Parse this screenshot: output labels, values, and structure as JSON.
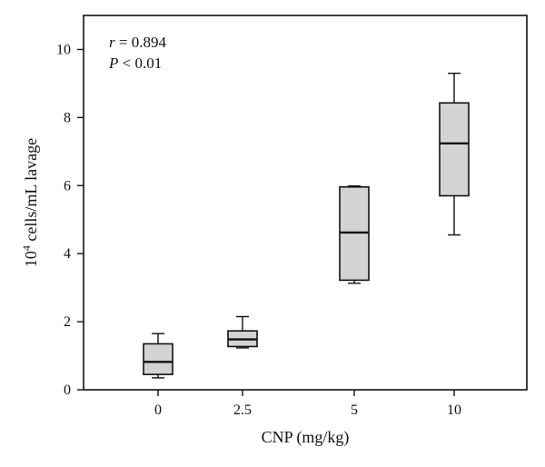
{
  "chart_data": {
    "type": "box",
    "xlabel": "CNP (mg/kg)",
    "ylabel_prefix": "10",
    "ylabel_exponent": "4",
    "ylabel_suffix": " cells/mL lavage",
    "ylim": [
      0,
      11
    ],
    "yticks": [
      0,
      2,
      4,
      6,
      8,
      10
    ],
    "categories": [
      "0",
      "2.5",
      "5",
      "10"
    ],
    "boxes": [
      {
        "category": "0",
        "min": 0.35,
        "q1": 0.45,
        "median": 0.82,
        "q3": 1.35,
        "max": 1.65
      },
      {
        "category": "2.5",
        "min": 1.23,
        "q1": 1.27,
        "median": 1.48,
        "q3": 1.73,
        "max": 2.15
      },
      {
        "category": "5",
        "min": 3.13,
        "q1": 3.22,
        "median": 4.62,
        "q3": 5.96,
        "max": 5.99
      },
      {
        "category": "10",
        "min": 4.55,
        "q1": 5.7,
        "median": 7.24,
        "q3": 8.43,
        "max": 9.3
      }
    ],
    "annotations": {
      "r_symbol": "r",
      "r_text": " = 0.894",
      "p_symbol": "P",
      "p_text": " < 0.01"
    },
    "grid": false,
    "box_color": "#d3d3d3"
  }
}
